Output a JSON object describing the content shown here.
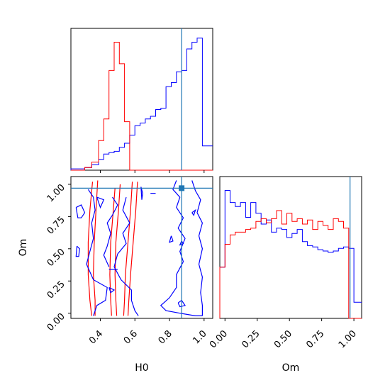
{
  "colors": {
    "series_a": "#0000ff",
    "series_b": "#ff0000",
    "truth": "#1f77b4",
    "axes": "#000000",
    "background": "#ffffff"
  },
  "chart_data": {
    "type": "corner",
    "parameters": [
      "H0",
      "Om"
    ],
    "xlabels": {
      "H0": "H0",
      "Om": "Om"
    },
    "ylabel": "Om",
    "truth": {
      "H0": 0.87,
      "Om": 0.97
    },
    "ranges": {
      "H0": [
        0.23,
        1.05
      ],
      "Om": [
        -0.04,
        1.06
      ]
    },
    "ticks": {
      "H0": [
        0.4,
        0.6,
        0.8,
        1.0
      ],
      "Om": [
        0.0,
        0.25,
        0.5,
        0.75,
        1.0
      ]
    },
    "tick_labels": {
      "H0": [
        "0.4",
        "0.6",
        "0.8",
        "1.0"
      ],
      "Om_y": [
        "0.00",
        "0.25",
        "0.50",
        "0.75",
        "1.00"
      ],
      "Om_x": [
        "0.00",
        "0.25",
        "0.50",
        "0.75",
        "1.00"
      ]
    },
    "marginal_H0": {
      "bin_edges": [
        0.23,
        0.27,
        0.31,
        0.35,
        0.39,
        0.42,
        0.45,
        0.48,
        0.51,
        0.54,
        0.57,
        0.6,
        0.63,
        0.66,
        0.69,
        0.72,
        0.75,
        0.78,
        0.81,
        0.84,
        0.87,
        0.9,
        0.93,
        0.96,
        0.99,
        1.02,
        1.05
      ],
      "series": [
        {
          "color": "#0000ff",
          "values": [
            0.01,
            0.01,
            0.02,
            0.04,
            0.08,
            0.12,
            0.13,
            0.14,
            0.17,
            0.2,
            0.26,
            0.33,
            0.35,
            0.38,
            0.4,
            0.45,
            0.46,
            0.62,
            0.65,
            0.73,
            0.74,
            0.9,
            0.95,
            0.98,
            0.18,
            0.18
          ]
        },
        {
          "color": "#ff0000",
          "values": [
            0.0,
            0.0,
            0.02,
            0.06,
            0.22,
            0.38,
            0.74,
            0.95,
            0.79,
            0.36,
            0.0,
            0.0,
            0.0,
            0.0,
            0.0,
            0.0,
            0.0,
            0.0,
            0.0,
            0.0,
            0.0,
            0.0,
            0.0,
            0.0,
            0.0,
            0.0
          ]
        }
      ]
    },
    "marginal_Om": {
      "bin_edges": [
        -0.04,
        0.0,
        0.04,
        0.08,
        0.12,
        0.16,
        0.2,
        0.24,
        0.28,
        0.32,
        0.36,
        0.4,
        0.44,
        0.48,
        0.52,
        0.56,
        0.6,
        0.64,
        0.68,
        0.72,
        0.76,
        0.8,
        0.84,
        0.88,
        0.92,
        0.96,
        1.0,
        1.06
      ],
      "series": [
        {
          "color": "#0000ff",
          "values": [
            0.38,
            0.95,
            0.86,
            0.83,
            0.86,
            0.75,
            0.86,
            0.78,
            0.7,
            0.73,
            0.64,
            0.67,
            0.66,
            0.6,
            0.63,
            0.66,
            0.57,
            0.54,
            0.53,
            0.51,
            0.5,
            0.49,
            0.5,
            0.52,
            0.53,
            0.52,
            0.12
          ]
        },
        {
          "color": "#ff0000",
          "values": [
            0.38,
            0.55,
            0.62,
            0.64,
            0.64,
            0.66,
            0.67,
            0.72,
            0.74,
            0.71,
            0.74,
            0.8,
            0.7,
            0.78,
            0.72,
            0.74,
            0.7,
            0.73,
            0.66,
            0.72,
            0.69,
            0.66,
            0.74,
            0.72,
            0.67,
            0.0,
            0.0
          ]
        }
      ]
    },
    "contours": [
      {
        "color": "#ff0000",
        "polylines": [
          [
            [
              0.355,
              1.02
            ],
            [
              0.34,
              0.8
            ],
            [
              0.33,
              0.55
            ],
            [
              0.33,
              0.3
            ],
            [
              0.34,
              0.1
            ],
            [
              0.35,
              -0.02
            ]
          ],
          [
            [
              0.385,
              1.03
            ],
            [
              0.375,
              0.8
            ],
            [
              0.365,
              0.55
            ],
            [
              0.36,
              0.3
            ],
            [
              0.37,
              0.1
            ],
            [
              0.37,
              -0.02
            ]
          ],
          [
            [
              0.485,
              0.97
            ],
            [
              0.475,
              0.8
            ],
            [
              0.46,
              0.55
            ],
            [
              0.455,
              0.3
            ],
            [
              0.46,
              0.1
            ],
            [
              0.465,
              -0.02
            ]
          ],
          [
            [
              0.515,
              1.0
            ],
            [
              0.505,
              0.8
            ],
            [
              0.49,
              0.55
            ],
            [
              0.485,
              0.3
            ],
            [
              0.49,
              0.1
            ],
            [
              0.495,
              -0.02
            ]
          ],
          [
            [
              0.585,
              1.02
            ],
            [
              0.575,
              0.8
            ],
            [
              0.56,
              0.55
            ],
            [
              0.545,
              0.3
            ],
            [
              0.54,
              0.1
            ],
            [
              0.535,
              -0.02
            ]
          ],
          [
            [
              0.615,
              1.02
            ],
            [
              0.605,
              0.8
            ],
            [
              0.59,
              0.55
            ],
            [
              0.575,
              0.3
            ],
            [
              0.565,
              0.1
            ],
            [
              0.56,
              -0.02
            ]
          ]
        ]
      },
      {
        "color": "#0000ff",
        "polylines": [
          [
            [
              0.26,
              0.82
            ],
            [
              0.29,
              0.84
            ],
            [
              0.31,
              0.78
            ],
            [
              0.29,
              0.74
            ],
            [
              0.27,
              0.74
            ],
            [
              0.26,
              0.82
            ]
          ],
          [
            [
              0.265,
              0.52
            ],
            [
              0.28,
              0.5
            ],
            [
              0.275,
              0.44
            ],
            [
              0.26,
              0.44
            ],
            [
              0.265,
              0.52
            ]
          ],
          [
            [
              0.33,
              0.96
            ],
            [
              0.36,
              0.9
            ],
            [
              0.37,
              0.8
            ],
            [
              0.35,
              0.7
            ],
            [
              0.36,
              0.58
            ],
            [
              0.34,
              0.48
            ],
            [
              0.32,
              0.38
            ],
            [
              0.36,
              0.26
            ],
            [
              0.44,
              0.2
            ],
            [
              0.43,
              0.1
            ],
            [
              0.38,
              0.06
            ],
            [
              0.36,
              -0.02
            ]
          ],
          [
            [
              0.38,
              0.9
            ],
            [
              0.42,
              0.88
            ],
            [
              0.4,
              0.82
            ],
            [
              0.38,
              0.9
            ]
          ],
          [
            [
              0.45,
              0.2
            ],
            [
              0.48,
              0.18
            ],
            [
              0.46,
              0.16
            ],
            [
              0.45,
              0.2
            ]
          ],
          [
            [
              0.45,
              0.34
            ],
            [
              0.5,
              0.34
            ]
          ],
          [
            [
              0.47,
              0.9
            ],
            [
              0.5,
              0.84
            ],
            [
              0.47,
              0.76
            ],
            [
              0.44,
              0.7
            ],
            [
              0.46,
              0.62
            ],
            [
              0.44,
              0.52
            ],
            [
              0.42,
              0.45
            ],
            [
              0.45,
              0.36
            ]
          ],
          [
            [
              0.55,
              0.9
            ],
            [
              0.53,
              0.8
            ],
            [
              0.57,
              0.7
            ],
            [
              0.53,
              0.62
            ],
            [
              0.55,
              0.54
            ],
            [
              0.5,
              0.46
            ],
            [
              0.48,
              0.36
            ],
            [
              0.52,
              0.26
            ],
            [
              0.58,
              0.18
            ],
            [
              0.58,
              0.1
            ],
            [
              0.6,
              0.02
            ],
            [
              0.62,
              -0.02
            ]
          ],
          [
            [
              0.635,
              0.98
            ],
            [
              0.645,
              0.93
            ],
            [
              0.64,
              0.88
            ],
            [
              0.635,
              0.98
            ]
          ],
          [
            [
              0.69,
              0.93
            ],
            [
              0.72,
              0.93
            ]
          ],
          [
            [
              0.81,
              0.6
            ],
            [
              0.82,
              0.56
            ],
            [
              0.8,
              0.55
            ],
            [
              0.81,
              0.6
            ]
          ],
          [
            [
              0.87,
              0.56
            ],
            [
              0.88,
              0.54
            ],
            [
              0.86,
              0.53
            ],
            [
              0.87,
              0.56
            ]
          ],
          [
            [
              0.85,
              0.08
            ],
            [
              0.87,
              0.1
            ],
            [
              0.89,
              0.06
            ],
            [
              0.86,
              0.05
            ],
            [
              0.85,
              0.08
            ]
          ],
          [
            [
              0.93,
              0.78
            ],
            [
              0.95,
              0.8
            ],
            [
              0.94,
              0.76
            ],
            [
              0.93,
              0.78
            ]
          ],
          [
            [
              0.84,
              1.03
            ],
            [
              0.82,
              0.96
            ],
            [
              0.86,
              0.9
            ],
            [
              0.84,
              0.82
            ],
            [
              0.88,
              0.74
            ],
            [
              0.85,
              0.66
            ],
            [
              0.89,
              0.58
            ],
            [
              0.86,
              0.48
            ],
            [
              0.88,
              0.4
            ],
            [
              0.84,
              0.3
            ],
            [
              0.84,
              0.2
            ],
            [
              0.8,
              0.12
            ],
            [
              0.75,
              0.06
            ],
            [
              0.78,
              0.02
            ],
            [
              0.86,
              0.0
            ],
            [
              0.95,
              -0.02
            ],
            [
              0.99,
              -0.02
            ]
          ],
          [
            [
              0.93,
              1.03
            ],
            [
              0.95,
              0.95
            ],
            [
              0.98,
              0.88
            ],
            [
              0.96,
              0.78
            ],
            [
              0.99,
              0.7
            ],
            [
              0.97,
              0.6
            ],
            [
              0.99,
              0.5
            ],
            [
              0.97,
              0.38
            ],
            [
              0.99,
              0.28
            ],
            [
              0.98,
              0.16
            ],
            [
              0.99,
              0.06
            ],
            [
              0.99,
              -0.02
            ]
          ]
        ]
      }
    ]
  }
}
